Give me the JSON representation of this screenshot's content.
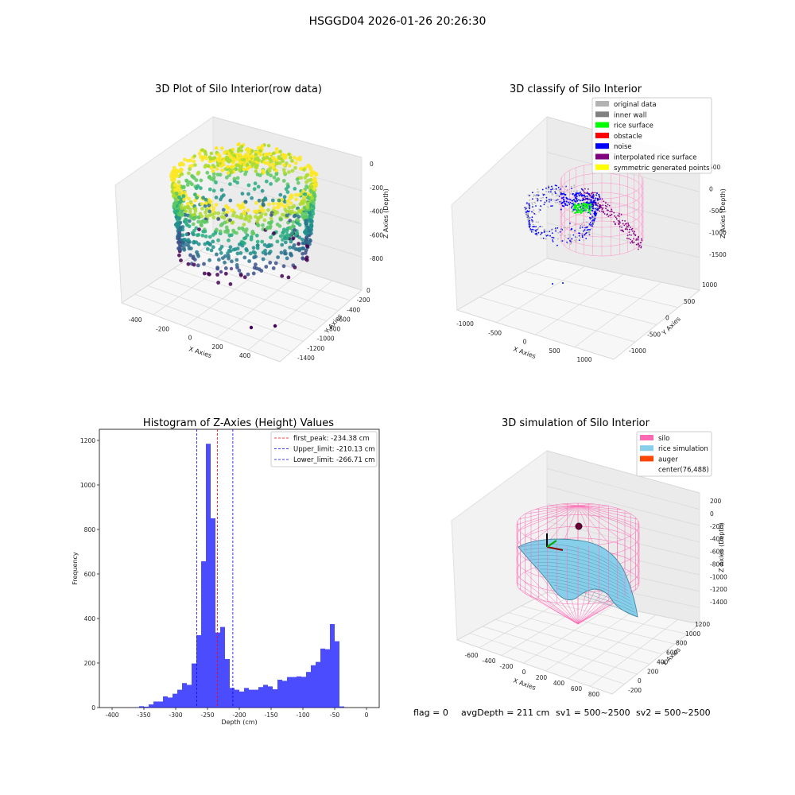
{
  "suptitle": "HSGGD04 2026-01-26 20:26:30",
  "footer": {
    "flag": "flag = 0",
    "avg_depth": "avgDepth = 211 cm",
    "sv1": "sv1 = 500~2500",
    "sv2": "sv2 = 500~2500"
  },
  "chart_data": [
    {
      "type": "scatter",
      "subtype": "3d",
      "title": "3D Plot of Silo Interior(row data)",
      "xlabel": "X Axies",
      "ylabel": "Y Axies",
      "zlabel": "Z Axies (Depth)",
      "x_ticks": [
        "-400",
        "-200",
        "0",
        "200",
        "400"
      ],
      "y_ticks": [
        "0",
        "-200",
        "-400",
        "-600",
        "-800",
        "-1000",
        "-1200",
        "-1400"
      ],
      "z_ticks": [
        "0",
        "-200",
        "-400",
        "-600",
        "-800"
      ],
      "colormap": "viridis"
    },
    {
      "type": "scatter",
      "subtype": "3d",
      "title": "3D classify of Silo Interior",
      "xlabel": "X Axies",
      "ylabel": "Y Axies",
      "zlabel": "Z Axies (Depth)",
      "x_ticks": [
        "-1000",
        "-500",
        "0",
        "500",
        "1000"
      ],
      "y_ticks": [
        "1000",
        "500",
        "0",
        "-500",
        "-1000"
      ],
      "z_ticks": [
        "500",
        "0",
        "-500",
        "-1000",
        "-1500"
      ],
      "legend_position": "top-right",
      "legend": [
        {
          "label": "original data",
          "color": "#b3b3b3"
        },
        {
          "label": "inner wall",
          "color": "#808080"
        },
        {
          "label": "rice surface",
          "color": "#00ff00"
        },
        {
          "label": "obstacle",
          "color": "#ff0000"
        },
        {
          "label": "noise",
          "color": "#0000ff"
        },
        {
          "label": "interpolated rice surface",
          "color": "#800080"
        },
        {
          "label": "symmetric generated points",
          "color": "#ffff00"
        }
      ]
    },
    {
      "type": "bar",
      "subtype": "histogram",
      "title": "Histogram of Z-Axies (Height) Values",
      "xlabel": "Depth (cm)",
      "ylabel": "Frequency",
      "xlim": [
        -420,
        20
      ],
      "ylim": [
        0,
        1250
      ],
      "x_ticks": [
        -400,
        -350,
        -300,
        -250,
        -200,
        -150,
        -100,
        -50,
        0
      ],
      "y_ticks": [
        0,
        200,
        400,
        600,
        800,
        1000,
        1200
      ],
      "bar_color": "#0000ff",
      "bins": [
        [
          -365,
          -357.5,
          1
        ],
        [
          -357.5,
          -350,
          6
        ],
        [
          -350,
          -342.5,
          4
        ],
        [
          -342.5,
          -335,
          14
        ],
        [
          -335,
          -327.5,
          27
        ],
        [
          -327.5,
          -320,
          27
        ],
        [
          -320,
          -312.5,
          50
        ],
        [
          -312.5,
          -305,
          45
        ],
        [
          -305,
          -297.5,
          62
        ],
        [
          -297.5,
          -290,
          80
        ],
        [
          -290,
          -282.5,
          110
        ],
        [
          -282.5,
          -275,
          102
        ],
        [
          -275,
          -267.5,
          198
        ],
        [
          -267.5,
          -260,
          325
        ],
        [
          -260,
          -252.5,
          657
        ],
        [
          -252.5,
          -245,
          1185
        ],
        [
          -245,
          -237.5,
          850
        ],
        [
          -237.5,
          -230,
          337
        ],
        [
          -230,
          -222.5,
          362
        ],
        [
          -222.5,
          -215,
          218
        ],
        [
          -215,
          -207.5,
          88
        ],
        [
          -207.5,
          -200,
          80
        ],
        [
          -200,
          -192.5,
          72
        ],
        [
          -192.5,
          -185,
          88
        ],
        [
          -185,
          -177.5,
          80
        ],
        [
          -177.5,
          -170,
          80
        ],
        [
          -170,
          -162.5,
          92
        ],
        [
          -162.5,
          -155,
          102
        ],
        [
          -155,
          -147.5,
          95
        ],
        [
          -147.5,
          -140,
          82
        ],
        [
          -140,
          -132.5,
          125
        ],
        [
          -132.5,
          -125,
          120
        ],
        [
          -125,
          -117.5,
          137
        ],
        [
          -117.5,
          -110,
          137
        ],
        [
          -110,
          -102.5,
          140
        ],
        [
          -102.5,
          -95,
          138
        ],
        [
          -95,
          -87.5,
          160
        ],
        [
          -87.5,
          -80,
          190
        ],
        [
          -80,
          -72.5,
          205
        ],
        [
          -72.5,
          -65,
          265
        ],
        [
          -65,
          -57.5,
          262
        ],
        [
          -57.5,
          -50,
          375
        ],
        [
          -50,
          -42.5,
          298
        ],
        [
          -42.5,
          -35,
          5
        ]
      ],
      "vlines": [
        {
          "label": "first_peak: -234.38 cm",
          "x": -234.38,
          "color": "#ff0000"
        },
        {
          "label": "Upper_limit: -210.13 cm",
          "x": -210.13,
          "color": "#0000ff"
        },
        {
          "label": "Lower_limit: -266.71 cm",
          "x": -266.71,
          "color": "#0000ff"
        }
      ],
      "legend_position": "top-right"
    },
    {
      "type": "scatter",
      "subtype": "3d-surface",
      "title": "3D simulation of Silo Interior",
      "xlabel": "X Axies",
      "ylabel": "Y Axies",
      "zlabel": "Z Axies (Depth)",
      "x_ticks": [
        "-600",
        "-400",
        "-200",
        "0",
        "200",
        "400",
        "600",
        "800"
      ],
      "y_ticks": [
        "1200",
        "1000",
        "800",
        "600",
        "400",
        "200",
        "0",
        "-200"
      ],
      "z_ticks": [
        "200",
        "0",
        "-200",
        "-400",
        "-600",
        "-800",
        "-1000",
        "-1200",
        "-1400"
      ],
      "legend_position": "top-right",
      "legend": [
        {
          "label": "silo",
          "color": "#ff69b4"
        },
        {
          "label": "rice simulation",
          "color": "#87ceeb"
        },
        {
          "label": "auger",
          "color": "#ff4500"
        },
        {
          "label": "center(76,488)",
          "color": "#ffffff"
        }
      ]
    }
  ]
}
